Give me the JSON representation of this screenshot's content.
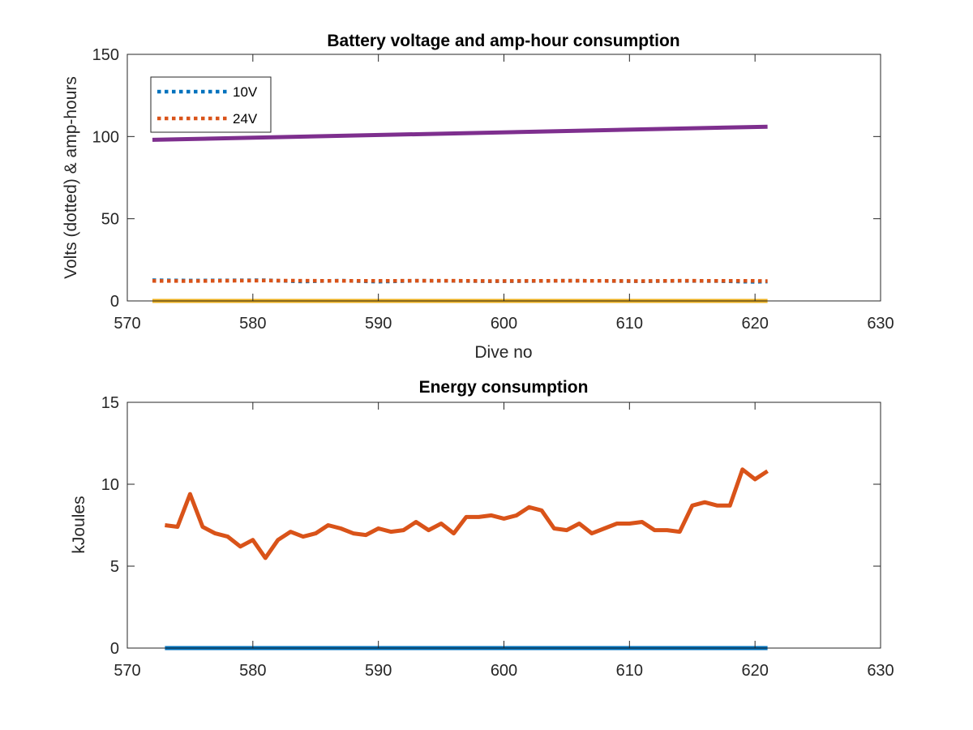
{
  "chart_data": [
    {
      "type": "line",
      "title": "Battery voltage and amp-hour consumption",
      "xlabel": "Dive no",
      "ylabel": "Volts (dotted) & amp-hours",
      "xlim": [
        570,
        630
      ],
      "ylim": [
        0,
        150
      ],
      "xticks": [
        "570",
        "580",
        "590",
        "600",
        "610",
        "620",
        "630"
      ],
      "yticks": [
        "0",
        "50",
        "100",
        "150"
      ],
      "grid": false,
      "legend_position": "top-left",
      "series": [
        {
          "name": "10V",
          "style": "dotted",
          "color": "#0072BD",
          "x": [
            572,
            575,
            578,
            581,
            584,
            587,
            590,
            593,
            596,
            599,
            602,
            605,
            608,
            611,
            614,
            617,
            620,
            621
          ],
          "y": [
            12.6,
            12.4,
            12.5,
            12.6,
            11.8,
            12.4,
            11.7,
            12.3,
            12.2,
            12.0,
            12.1,
            12.3,
            12.2,
            12.0,
            12.2,
            12.1,
            11.6,
            11.8
          ]
        },
        {
          "name": "24V",
          "style": "dotted",
          "color": "#D95319",
          "x": [
            572,
            575,
            578,
            581,
            584,
            587,
            590,
            593,
            596,
            599,
            602,
            605,
            608,
            611,
            614,
            617,
            620,
            621
          ],
          "y": [
            12.2,
            12.1,
            12.3,
            12.4,
            12.3,
            12.2,
            12.2,
            12.3,
            12.3,
            12.1,
            12.2,
            12.3,
            12.2,
            12.1,
            12.3,
            12.2,
            12.2,
            12.1
          ]
        },
        {
          "style": "solid",
          "color": "#7E2F8E",
          "x": [
            572,
            621
          ],
          "y": [
            98,
            106
          ]
        },
        {
          "style": "solid",
          "color": "#EDB120",
          "x": [
            572,
            621
          ],
          "y": [
            0,
            0
          ]
        }
      ]
    },
    {
      "type": "line",
      "title": "Energy consumption",
      "xlabel": "",
      "ylabel": "kJoules",
      "xlim": [
        570,
        630
      ],
      "ylim": [
        0,
        15
      ],
      "xticks": [
        "570",
        "580",
        "590",
        "600",
        "610",
        "620",
        "630"
      ],
      "yticks": [
        "0",
        "5",
        "10",
        "15"
      ],
      "grid": false,
      "series": [
        {
          "style": "solid",
          "color": "#0072BD",
          "x": [
            573,
            621
          ],
          "y": [
            0,
            0
          ]
        },
        {
          "style": "solid",
          "color": "#D95319",
          "x": [
            573,
            574,
            575,
            576,
            577,
            578,
            579,
            580,
            581,
            582,
            583,
            584,
            585,
            586,
            587,
            588,
            589,
            590,
            591,
            592,
            593,
            594,
            595,
            596,
            597,
            598,
            599,
            600,
            601,
            602,
            603,
            604,
            605,
            606,
            607,
            608,
            609,
            610,
            611,
            612,
            613,
            614,
            615,
            616,
            617,
            618,
            619,
            620,
            621
          ],
          "y": [
            7.5,
            7.4,
            9.4,
            7.4,
            7.0,
            6.8,
            6.2,
            6.6,
            5.5,
            6.6,
            7.1,
            6.8,
            7.0,
            7.5,
            7.3,
            7.0,
            6.9,
            7.3,
            7.1,
            7.2,
            7.7,
            7.2,
            7.6,
            7.0,
            8.0,
            8.0,
            8.1,
            7.9,
            8.1,
            8.6,
            8.4,
            7.3,
            7.2,
            7.6,
            7.0,
            7.3,
            7.6,
            7.6,
            7.7,
            7.2,
            7.2,
            7.1,
            8.7,
            8.9,
            8.7,
            8.7,
            10.9,
            10.3,
            10.8
          ]
        }
      ]
    }
  ]
}
